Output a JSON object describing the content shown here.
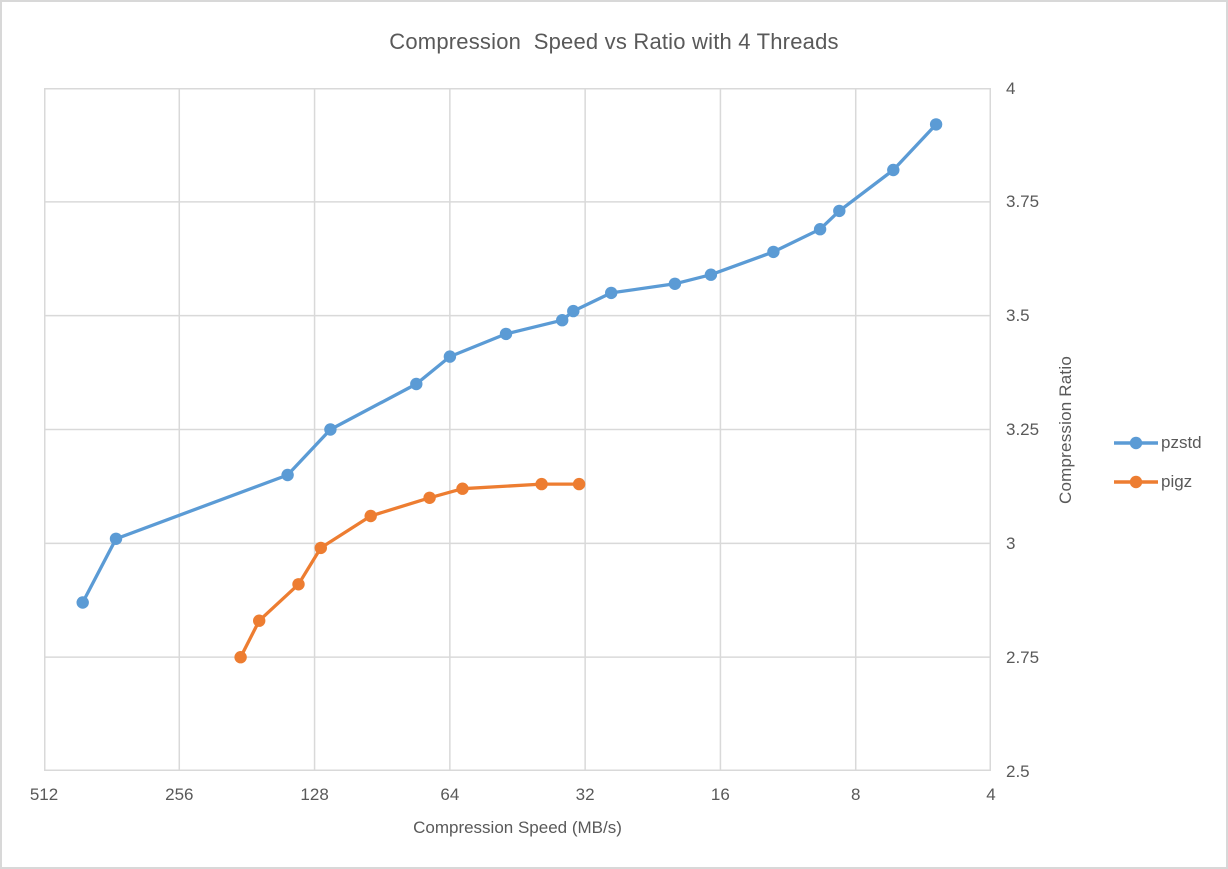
{
  "colors": {
    "pzstd": "#5B9BD5",
    "pigz": "#ED7D31",
    "grid": "#D9D9D9",
    "text": "#595959"
  },
  "chart_data": {
    "type": "line",
    "title": "Compression  Speed vs Ratio with 4 Threads",
    "xlabel": "Compression Speed (MB/s)",
    "ylabel": "Compression Ratio",
    "x_scale": "log2_reversed",
    "x_ticks": [
      512,
      256,
      128,
      64,
      32,
      16,
      8,
      4
    ],
    "y_ticks": [
      4,
      3.75,
      3.5,
      3.25,
      3,
      2.75,
      2.5
    ],
    "xlim": [
      512,
      4
    ],
    "ylim": [
      2.5,
      4
    ],
    "grid": true,
    "legend_position": "right",
    "series": [
      {
        "name": "pzstd",
        "color": "#5B9BD5",
        "points": [
          [
            420,
            2.87
          ],
          [
            354,
            3.01
          ],
          [
            147,
            3.15
          ],
          [
            118,
            3.25
          ],
          [
            76,
            3.35
          ],
          [
            64,
            3.41
          ],
          [
            48,
            3.46
          ],
          [
            36,
            3.49
          ],
          [
            34,
            3.51
          ],
          [
            28,
            3.55
          ],
          [
            20.2,
            3.57
          ],
          [
            16.8,
            3.59
          ],
          [
            12.2,
            3.64
          ],
          [
            9.6,
            3.69
          ],
          [
            8.7,
            3.73
          ],
          [
            6.6,
            3.82
          ],
          [
            5.3,
            3.92
          ]
        ]
      },
      {
        "name": "pigz",
        "color": "#ED7D31",
        "points": [
          [
            187,
            2.75
          ],
          [
            170,
            2.83
          ],
          [
            139,
            2.91
          ],
          [
            124,
            2.99
          ],
          [
            96,
            3.06
          ],
          [
            71,
            3.1
          ],
          [
            60,
            3.12
          ],
          [
            40,
            3.13
          ],
          [
            33,
            3.13
          ]
        ]
      }
    ]
  }
}
